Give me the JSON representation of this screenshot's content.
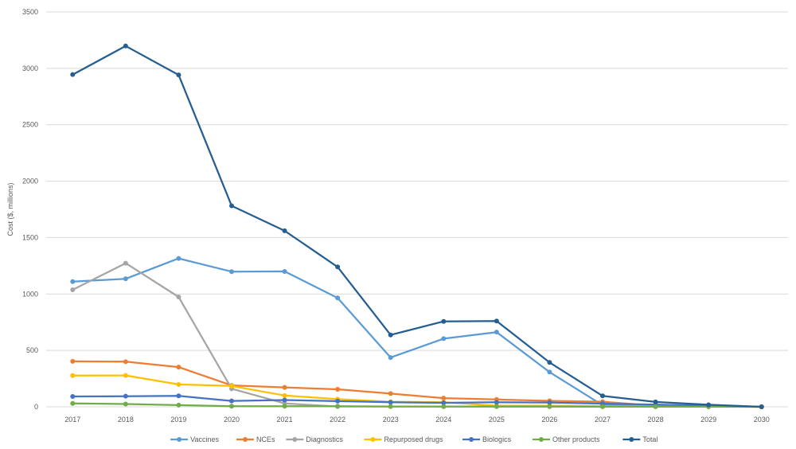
{
  "chart_data": {
    "type": "line",
    "title": "",
    "xlabel": "",
    "ylabel": "Cost ($, millions)",
    "ylim": [
      0,
      3500
    ],
    "yticks": [
      "0",
      "500",
      "1000",
      "1500",
      "2000",
      "2500",
      "3000",
      "3500"
    ],
    "grid": true,
    "legend_position": "bottom",
    "categories": [
      "2017",
      "2018",
      "2019",
      "2020",
      "2021",
      "2022",
      "2023",
      "2024",
      "2025",
      "2026",
      "2027",
      "2028",
      "2029",
      "2030"
    ],
    "series": [
      {
        "name": "Vaccines",
        "color": "#5b9bd5",
        "values": [
          1110,
          1135,
          1315,
          1198,
          1200,
          965,
          437,
          604,
          662,
          308,
          15,
          10,
          5,
          0
        ]
      },
      {
        "name": "NCEs",
        "color": "#ed7d31",
        "values": [
          403,
          400,
          352,
          190,
          172,
          155,
          117,
          77,
          65,
          53,
          45,
          10,
          5,
          0
        ]
      },
      {
        "name": "Diagnostics",
        "color": "#a5a5a5",
        "values": [
          1037,
          1273,
          974,
          160,
          30,
          3,
          3,
          2,
          2,
          2,
          1,
          1,
          1,
          0
        ]
      },
      {
        "name": "Repurposed drugs",
        "color": "#ffc000",
        "values": [
          277,
          278,
          198,
          185,
          100,
          68,
          45,
          40,
          10,
          10,
          5,
          5,
          2,
          0
        ]
      },
      {
        "name": "Biologics",
        "color": "#4472c4",
        "values": [
          92,
          94,
          97,
          52,
          60,
          50,
          40,
          35,
          40,
          38,
          28,
          20,
          10,
          0
        ]
      },
      {
        "name": "Other products",
        "color": "#70ad47",
        "values": [
          30,
          25,
          15,
          5,
          5,
          5,
          3,
          3,
          3,
          3,
          2,
          2,
          1,
          0
        ]
      },
      {
        "name": "Total",
        "color": "#255e91",
        "values": [
          2945,
          3198,
          2942,
          1782,
          1560,
          1240,
          637,
          757,
          760,
          393,
          97,
          43,
          18,
          0
        ]
      }
    ]
  }
}
